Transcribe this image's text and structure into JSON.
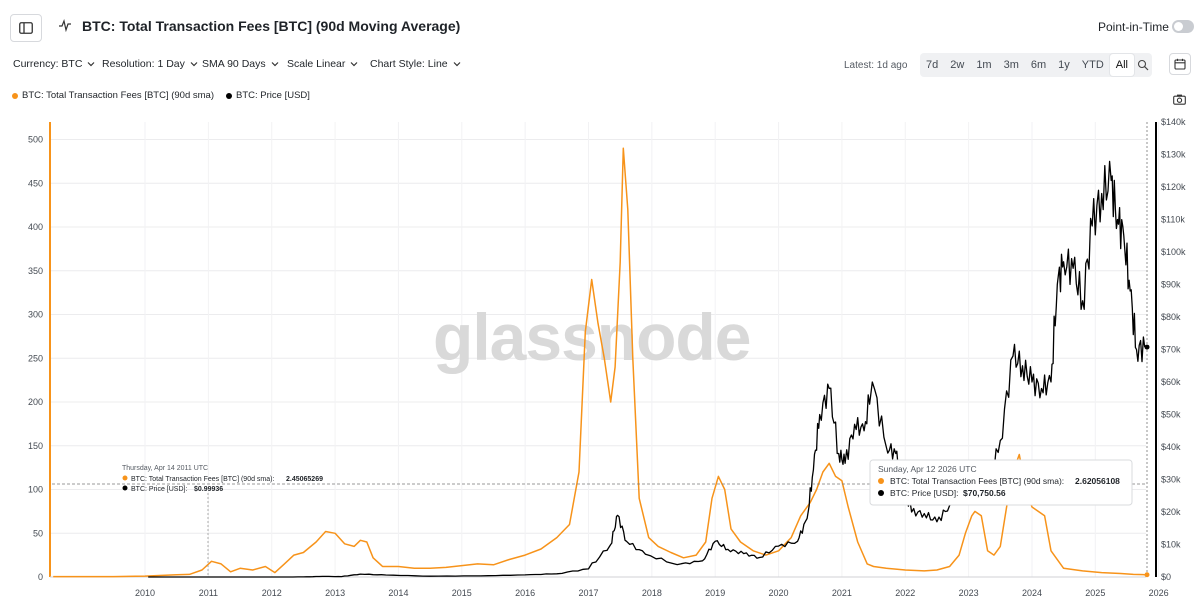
{
  "header": {
    "title": "BTC: Total Transaction Fees [BTC] (90d Moving Average)",
    "pit_label": "Point-in-Time"
  },
  "controls": {
    "currency": "Currency: BTC",
    "resolution": "Resolution: 1 Day",
    "sma": "SMA 90 Days",
    "scale": "Scale Linear",
    "style": "Chart Style: Line",
    "latest": "Latest: 1d ago",
    "ranges": [
      "7d",
      "2w",
      "1m",
      "3m",
      "6m",
      "1y",
      "YTD",
      "All"
    ],
    "active_range": "All"
  },
  "legend": [
    {
      "label": "BTC: Total Transaction Fees [BTC] (90d sma)",
      "color": "#f7931a"
    },
    {
      "label": "BTC: Price [USD]",
      "color": "#000000"
    }
  ],
  "watermark": "glassnode",
  "tooltip_left": {
    "date": "Thursday, Apr 14 2011 UTC",
    "fee_label": "BTC: Total Transaction Fees [BTC] (90d sma):",
    "fee_value": "2.45065269",
    "price_label": "BTC: Price [USD]:",
    "price_value": "$0.99936"
  },
  "tooltip_right": {
    "date": "Sunday, Apr 12 2026 UTC",
    "fee_label": "BTC: Total Transaction Fees [BTC] (90d sma):",
    "fee_value": "2.62056108",
    "price_label": "BTC: Price [USD]:",
    "price_value": "$70,750.56"
  },
  "colors": {
    "fees": "#f7931a",
    "price": "#000000"
  },
  "chart_data": {
    "type": "line",
    "x_ticks": [
      "2010",
      "2011",
      "2012",
      "2013",
      "2014",
      "2015",
      "2016",
      "2017",
      "2018",
      "2019",
      "2020",
      "2021",
      "2022",
      "2023",
      "2024",
      "2025",
      "2026"
    ],
    "x_range": [
      2009.0,
      2026.3
    ],
    "y_left_ticks": [
      0,
      50,
      100,
      150,
      200,
      250,
      300,
      350,
      400,
      450,
      500
    ],
    "y_left_range": [
      0,
      520
    ],
    "y_right_ticks": [
      "$0",
      "$10k",
      "$20k",
      "$30k",
      "$40k",
      "$50k",
      "$60k",
      "$70k",
      "$80k",
      "$90k",
      "$100k",
      "$110k",
      "$120k",
      "$130k",
      "$140k"
    ],
    "y_right_range": [
      0,
      140000
    ],
    "grid": true,
    "series": [
      {
        "name": "BTC: Total Transaction Fees [BTC] (90d sma)",
        "axis": "left",
        "x": [
          2009.05,
          2010.0,
          2010.5,
          2011.0,
          2011.2,
          2011.4,
          2011.55,
          2011.7,
          2011.85,
          2012.0,
          2012.2,
          2012.4,
          2012.55,
          2012.7,
          2012.85,
          2013.0,
          2013.2,
          2013.35,
          2013.5,
          2013.65,
          2013.8,
          2013.9,
          2014.0,
          2014.1,
          2014.25,
          2014.5,
          2014.75,
          2015.0,
          2015.25,
          2015.5,
          2015.75,
          2016.0,
          2016.25,
          2016.5,
          2016.75,
          2017.0,
          2017.2,
          2017.35,
          2017.45,
          2017.55,
          2017.65,
          2017.75,
          2017.85,
          2017.92,
          2018.0,
          2018.05,
          2018.12,
          2018.2,
          2018.3,
          2018.45,
          2018.6,
          2018.8,
          2019.0,
          2019.2,
          2019.35,
          2019.45,
          2019.55,
          2019.65,
          2019.75,
          2019.9,
          2020.1,
          2020.3,
          2020.5,
          2020.7,
          2020.85,
          2021.0,
          2021.1,
          2021.2,
          2021.3,
          2021.4,
          2021.5,
          2021.6,
          2021.75,
          2021.9,
          2022.0,
          2022.2,
          2022.5,
          2022.8,
          2023.0,
          2023.2,
          2023.35,
          2023.45,
          2023.55,
          2023.6,
          2023.7,
          2023.8,
          2023.9,
          2024.0,
          2024.1,
          2024.2,
          2024.3,
          2024.4,
          2024.5,
          2024.6,
          2024.7,
          2024.8,
          2025.0,
          2025.3,
          2025.6,
          2025.9,
          2026.1,
          2026.28
        ],
        "y": [
          0.5,
          0.5,
          1,
          2.5,
          3,
          8,
          18,
          15,
          6,
          10,
          8,
          12,
          5,
          15,
          25,
          28,
          40,
          52,
          50,
          38,
          35,
          42,
          40,
          22,
          12,
          12,
          10,
          10,
          11,
          13,
          15,
          14,
          20,
          25,
          32,
          45,
          60,
          120,
          280,
          340,
          290,
          250,
          200,
          240,
          360,
          490,
          420,
          250,
          90,
          45,
          35,
          28,
          22,
          25,
          40,
          90,
          115,
          100,
          55,
          40,
          30,
          25,
          30,
          45,
          70,
          85,
          100,
          120,
          130,
          115,
          110,
          80,
          40,
          15,
          12,
          10,
          8,
          7,
          8,
          12,
          25,
          50,
          70,
          75,
          70,
          30,
          25,
          35,
          80,
          120,
          140,
          100,
          80,
          75,
          70,
          30,
          10,
          7,
          5,
          4,
          3,
          2.6
        ]
      },
      {
        "name": "BTC: Price [USD]",
        "axis": "right",
        "x": [
          2010.55,
          2011.0,
          2011.45,
          2011.9,
          2012.5,
          2013.0,
          2013.3,
          2013.6,
          2013.9,
          2014.3,
          2015.0,
          2015.8,
          2016.5,
          2017.0,
          2017.5,
          2017.85,
          2017.96,
          2018.1,
          2018.4,
          2018.9,
          2019.3,
          2019.5,
          2019.7,
          2019.95,
          2020.2,
          2020.5,
          2020.8,
          2020.95,
          2021.05,
          2021.15,
          2021.3,
          2021.45,
          2021.55,
          2021.7,
          2021.85,
          2021.98,
          2022.2,
          2022.35,
          2022.45,
          2022.6,
          2022.8,
          2023.0,
          2023.2,
          2023.5,
          2023.8,
          2024.0,
          2024.2,
          2024.35,
          2024.5,
          2024.65,
          2024.8,
          2024.9,
          2025.0,
          2025.15,
          2025.3,
          2025.45,
          2025.6,
          2025.75,
          2025.85,
          2025.95,
          2026.05,
          2026.15,
          2026.28
        ],
        "y": [
          0,
          1,
          15,
          3,
          8,
          20,
          200,
          120,
          900,
          600,
          250,
          350,
          650,
          1000,
          2500,
          10000,
          19000,
          11000,
          7000,
          3800,
          5000,
          11000,
          8500,
          7200,
          6000,
          9500,
          11000,
          18000,
          33000,
          50000,
          58000,
          38000,
          35000,
          47000,
          45000,
          60000,
          40000,
          38000,
          30000,
          20000,
          19500,
          17000,
          22000,
          29000,
          27000,
          42000,
          68000,
          65000,
          60000,
          58000,
          60000,
          90000,
          97000,
          95000,
          85000,
          108000,
          118000,
          122000,
          110000,
          105000,
          88000,
          70000,
          70750
        ]
      }
    ]
  }
}
